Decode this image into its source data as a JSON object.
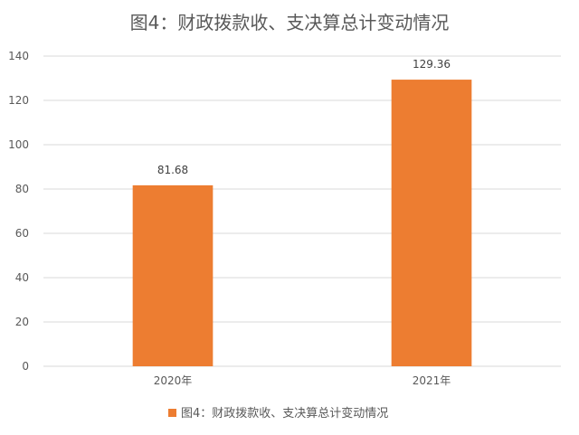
{
  "chart_data": {
    "type": "bar",
    "title": "图4：财政拨款收、支决算总计变动情况",
    "categories": [
      "2020年",
      "2021年"
    ],
    "series": [
      {
        "name": "图4：财政拨款收、支决算总计变动情况",
        "values": [
          81.68,
          129.36
        ],
        "labels": [
          "81.68",
          "129.36"
        ]
      }
    ],
    "ylim": [
      0,
      140
    ],
    "yticks": [
      0,
      20,
      40,
      60,
      80,
      100,
      120,
      140
    ],
    "xlabel": "",
    "ylabel": "",
    "grid": true,
    "legend": "bottom",
    "colors": {
      "bar": "#ED7D31",
      "grid": "#D9D9D9",
      "text": "#595959"
    }
  }
}
